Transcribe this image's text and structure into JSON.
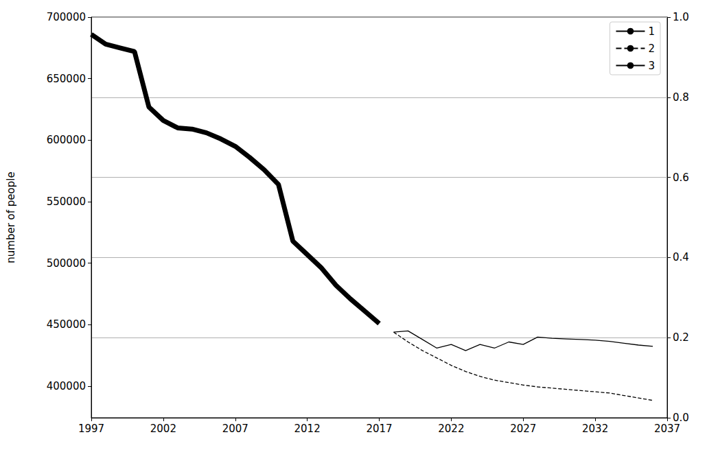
{
  "chart_data": {
    "type": "line",
    "y_label": "number of people",
    "xlim": [
      1997,
      2037
    ],
    "xticks": [
      1997,
      2002,
      2007,
      2012,
      2017,
      2022,
      2027,
      2032,
      2037
    ],
    "ylim": [
      374400,
      700000
    ],
    "yticks": [
      400000,
      450000,
      500000,
      550000,
      600000,
      650000,
      700000
    ],
    "y2lim": [
      0,
      1
    ],
    "y2ticks": [
      {
        "value": 0,
        "label": "0.0"
      },
      0.2,
      0.4,
      0.6,
      0.8,
      {
        "value": 1,
        "label": "1.0"
      }
    ],
    "grid": true,
    "legend": "upper right",
    "series": [
      {
        "name": "1",
        "color": "#000000",
        "line_style": "solid",
        "x": [
          1997,
          1998,
          1999,
          2000,
          2001,
          2002,
          2003,
          2004,
          2005,
          2006,
          2007,
          2008,
          2009,
          2010,
          2011,
          2012,
          2013,
          2014,
          2015,
          2016,
          2017
        ],
        "values": [
          686000,
          678000,
          675000,
          672000,
          627000,
          616000,
          610000,
          609000,
          606000,
          601000,
          595000,
          586000,
          576000,
          564000,
          518000,
          507000,
          496000,
          482000,
          471000,
          461000,
          451000
        ]
      },
      {
        "name": "2",
        "color": "#000000",
        "line_style": "dashed",
        "x": [
          2018,
          2019,
          2020,
          2021,
          2022,
          2023,
          2024,
          2025,
          2026,
          2027,
          2028,
          2029,
          2030,
          2031,
          2032,
          2033,
          2034,
          2035,
          2036
        ],
        "values": [
          444000,
          436000,
          429000,
          423000,
          417000,
          412000,
          408000,
          405000,
          403000,
          401000,
          399500,
          398500,
          397500,
          396500,
          395500,
          394500,
          392500,
          390500,
          388500
        ]
      },
      {
        "name": "3",
        "color": "#000000",
        "line_style": "solid",
        "x": [
          2018,
          2019,
          2020,
          2021,
          2022,
          2023,
          2024,
          2025,
          2026,
          2027,
          2028,
          2029,
          2030,
          2031,
          2032,
          2033,
          2034,
          2035,
          2036
        ],
        "values": [
          444000,
          445000,
          438000,
          431000,
          434000,
          429000,
          434000,
          431000,
          436000,
          434000,
          440000,
          439000,
          438500,
          438000,
          437500,
          436500,
          435000,
          433500,
          432500
        ]
      }
    ]
  }
}
